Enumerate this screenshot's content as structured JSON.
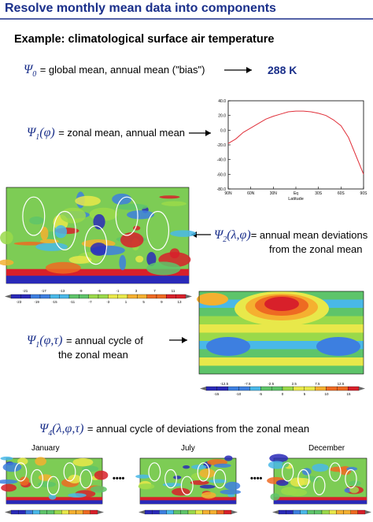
{
  "header": {
    "title": "Resolve monthly mean data into components"
  },
  "subtitle": "Example: climatological surface air temperature",
  "terms": [
    {
      "symbol": "Ψ",
      "index": "0",
      "text": "= global mean, annual mean (\"bias\")",
      "result": "288 K"
    },
    {
      "symbol": "Ψ",
      "index": "1",
      "args": "(φ)",
      "text": "= zonal mean, annual mean"
    },
    {
      "symbol": "Ψ",
      "index": "2",
      "args": "(λ,φ)",
      "lines": [
        "= annual mean deviations",
        "from the zonal mean"
      ]
    },
    {
      "symbol": "Ψ",
      "index": "1",
      "args": "(φ,τ)",
      "lines": [
        "= annual cycle of",
        "the zonal mean"
      ]
    },
    {
      "symbol": "Ψ",
      "index": "4",
      "args": "(λ,φ,τ)",
      "text": "= annual cycle of deviations from the zonal mean"
    }
  ],
  "zonal_plot": {
    "type": "line",
    "color": "#e0303a",
    "x": [
      90,
      80,
      70,
      60,
      50,
      40,
      30,
      20,
      10,
      0,
      -10,
      -20,
      -30,
      -40,
      -50,
      -60,
      -70,
      -80,
      -90
    ],
    "values": [
      -18,
      -12,
      -3,
      3,
      9,
      15,
      19,
      22,
      25,
      26,
      26,
      25,
      23,
      20,
      14,
      6,
      -10,
      -35,
      -60
    ],
    "xlim": [
      90,
      -90
    ],
    "xticks": [
      {
        "value": 90,
        "label": "90N"
      },
      {
        "value": 60,
        "label": "60N"
      },
      {
        "value": 30,
        "label": "30N"
      },
      {
        "value": 0,
        "label": "Eq"
      },
      {
        "value": -30,
        "label": "30S"
      },
      {
        "value": -60,
        "label": "60S"
      },
      {
        "value": -90,
        "label": "90S"
      }
    ],
    "ylim": [
      -80,
      40
    ],
    "yticks": [
      {
        "value": 40,
        "label": "40.0"
      },
      {
        "value": 20,
        "label": "20.0"
      },
      {
        "value": 0,
        "label": "0.0"
      },
      {
        "value": -20,
        "label": "-20.0"
      },
      {
        "value": -40,
        "label": "-40.0"
      },
      {
        "value": -60,
        "label": "-60.0"
      },
      {
        "value": -80,
        "label": "-80.0"
      }
    ],
    "x_label": "Latitude"
  },
  "colorbar_1": {
    "top": [
      -21,
      -17,
      -13,
      -9,
      -5,
      -1,
      3,
      7,
      11
    ],
    "bottom": [
      -23,
      -19,
      -15,
      -11,
      -7,
      -3,
      1,
      5,
      9,
      13
    ]
  },
  "colorbar_2": {
    "top": [
      -12.5,
      -7.5,
      -2.5,
      2.5,
      7.5,
      12.5
    ],
    "bottom": [
      -15,
      -10,
      -5,
      0,
      5,
      10,
      15
    ]
  },
  "months": [
    "January",
    "July",
    "December"
  ],
  "ellipsis": [
    "••••",
    "••••"
  ]
}
